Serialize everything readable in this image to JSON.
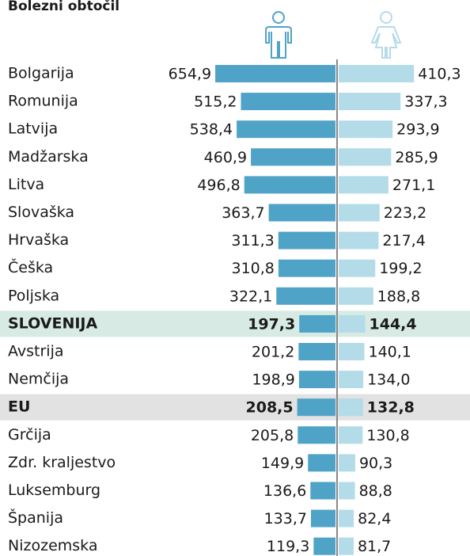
{
  "chart_data": {
    "type": "bar",
    "title": "Bolezni obtočil",
    "categories": [
      "Bolgarija",
      "Romunija",
      "Latvija",
      "Madžarska",
      "Litva",
      "Slovaška",
      "Hrvaška",
      "Češka",
      "Poljska",
      "SLOVENIJA",
      "Avstrija",
      "Nemčija",
      "EU",
      "Grčija",
      "Zdr. kraljestvo",
      "Luksemburg",
      "Španija",
      "Nizozemska"
    ],
    "series": [
      {
        "color": "#4fa3c7",
        "values": [
          654.9,
          515.2,
          538.4,
          460.9,
          496.8,
          363.7,
          311.3,
          310.8,
          322.1,
          197.3,
          201.2,
          198.9,
          208.5,
          205.8,
          149.9,
          136.6,
          133.7,
          119.3
        ],
        "value_labels": [
          "654,9",
          "515,2",
          "538,4",
          "460,9",
          "496,8",
          "363,7",
          "311,3",
          "310,8",
          "322,1",
          "197,3",
          "201,2",
          "198,9",
          "208,5",
          "205,8",
          "149,9",
          "136,6",
          "133,7",
          "119,3"
        ]
      },
      {
        "color": "#b4dbe8",
        "values": [
          410.3,
          337.3,
          293.9,
          285.9,
          271.1,
          223.2,
          217.4,
          199.2,
          188.8,
          144.4,
          140.1,
          134.0,
          132.8,
          130.8,
          90.3,
          88.8,
          82.4,
          81.7
        ],
        "value_labels": [
          "410,3",
          "337,3",
          "293,9",
          "285,9",
          "271,1",
          "223,2",
          "217,4",
          "199,2",
          "188,8",
          "144,4",
          "140,1",
          "134,0",
          "132,8",
          "130,8",
          "90,3",
          "88,8",
          "82,4",
          "81,7"
        ]
      }
    ],
    "highlight": [
      {
        "index": 9,
        "color": "#d7ebe4",
        "label_color": "#3a9a7a"
      },
      {
        "index": 12,
        "color": "#e2e2e2",
        "label_color": "#1a1a1a"
      }
    ],
    "title_color": "#3a9a7a"
  }
}
